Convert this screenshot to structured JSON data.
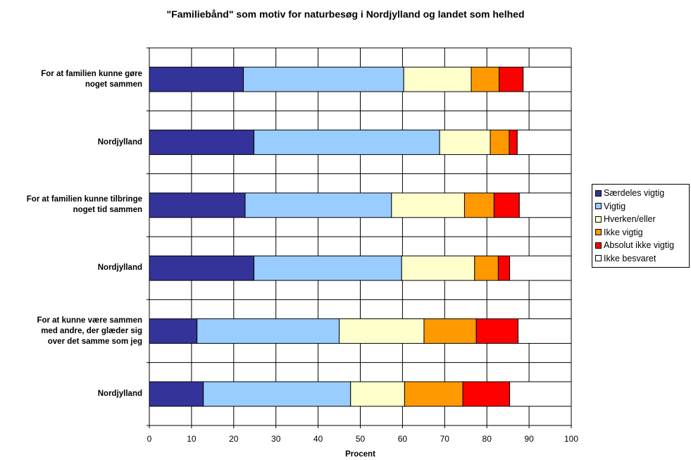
{
  "chart_data": {
    "type": "bar",
    "orientation": "horizontal",
    "stacked": true,
    "title": "\"Familiebånd\" som motiv for naturbesøg i Nordjylland og landet som helhed",
    "xlabel": "Procent",
    "ylabel": "",
    "xlim": [
      0,
      100
    ],
    "xticks": [
      0,
      10,
      20,
      30,
      40,
      50,
      60,
      70,
      80,
      90,
      100
    ],
    "grid": true,
    "legend_position": "right",
    "categories": [
      "For at familien kunne gøre\nnoget sammen",
      "Nordjylland",
      "For at familien kunne tilbringe\nnoget tid sammen",
      "Nordjylland",
      "For at kunne være sammen\nmed andre, der glæder sig\nover det samme som jeg",
      "Nordjylland"
    ],
    "series": [
      {
        "name": "Særdeles vigtig",
        "color": "#333399",
        "values": [
          22.3,
          24.8,
          22.7,
          24.8,
          11.3,
          12.8
        ]
      },
      {
        "name": "Vigtig",
        "color": "#99CCFF",
        "values": [
          38.0,
          44.0,
          34.7,
          35.0,
          33.7,
          34.9
        ]
      },
      {
        "name": "Hverken/eller",
        "color": "#FFFFCC",
        "values": [
          16.0,
          12.0,
          17.3,
          17.3,
          20.1,
          12.8
        ]
      },
      {
        "name": "Ikke vigtig",
        "color": "#FF9900",
        "values": [
          6.6,
          4.5,
          7.0,
          5.6,
          12.4,
          13.8
        ]
      },
      {
        "name": "Absolut ikke vigtig",
        "color": "#FF0000",
        "values": [
          5.7,
          1.9,
          6.0,
          2.7,
          9.9,
          11.1
        ]
      },
      {
        "name": "Ikke besvaret",
        "color": "#FFFFFF",
        "values": [
          11.4,
          12.8,
          12.3,
          14.6,
          12.6,
          14.6
        ]
      }
    ]
  }
}
